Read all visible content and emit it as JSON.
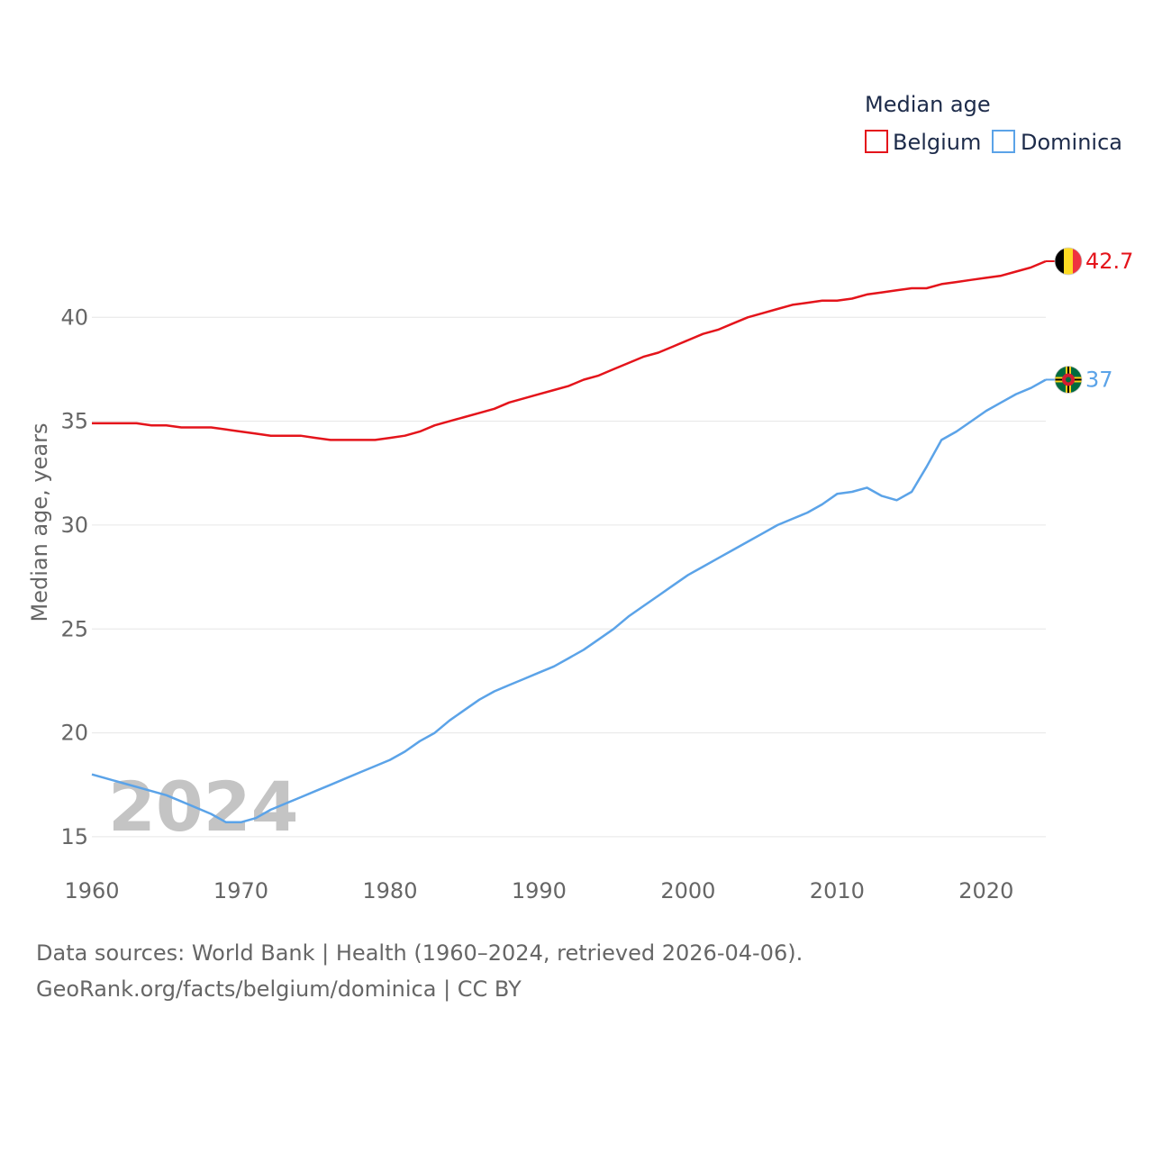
{
  "chart_data": {
    "type": "line",
    "legend_title": "Median age",
    "ylabel": "Median age, years",
    "xlabel": "",
    "current_year_label": "2024",
    "xlim": [
      1960,
      2024
    ],
    "ylim": [
      14,
      44
    ],
    "x_ticks": [
      1960,
      1970,
      1980,
      1990,
      2000,
      2010,
      2020
    ],
    "y_ticks": [
      15,
      20,
      25,
      30,
      35,
      40
    ],
    "grid": true,
    "x": [
      1960,
      1961,
      1962,
      1963,
      1964,
      1965,
      1966,
      1967,
      1968,
      1969,
      1970,
      1971,
      1972,
      1973,
      1974,
      1975,
      1976,
      1977,
      1978,
      1979,
      1980,
      1981,
      1982,
      1983,
      1984,
      1985,
      1986,
      1987,
      1988,
      1989,
      1990,
      1991,
      1992,
      1993,
      1994,
      1995,
      1996,
      1997,
      1998,
      1999,
      2000,
      2001,
      2002,
      2003,
      2004,
      2005,
      2006,
      2007,
      2008,
      2009,
      2010,
      2011,
      2012,
      2013,
      2014,
      2015,
      2016,
      2017,
      2018,
      2019,
      2020,
      2021,
      2022,
      2023,
      2024
    ],
    "series": [
      {
        "name": "Belgium",
        "color": "#e4141b",
        "end_label": "42.7",
        "flag": "belgium-flag",
        "values": [
          34.9,
          34.9,
          34.9,
          34.9,
          34.8,
          34.8,
          34.7,
          34.7,
          34.7,
          34.6,
          34.5,
          34.4,
          34.3,
          34.3,
          34.3,
          34.2,
          34.1,
          34.1,
          34.1,
          34.1,
          34.2,
          34.3,
          34.5,
          34.8,
          35.0,
          35.2,
          35.4,
          35.6,
          35.9,
          36.1,
          36.3,
          36.5,
          36.7,
          37.0,
          37.2,
          37.5,
          37.8,
          38.1,
          38.3,
          38.6,
          38.9,
          39.2,
          39.4,
          39.7,
          40.0,
          40.2,
          40.4,
          40.6,
          40.7,
          40.8,
          40.8,
          40.9,
          41.1,
          41.2,
          41.3,
          41.4,
          41.4,
          41.6,
          41.7,
          41.8,
          41.9,
          42.0,
          42.2,
          42.4,
          42.7
        ]
      },
      {
        "name": "Dominica",
        "color": "#5ba3e8",
        "end_label": "37",
        "flag": "dominica-flag",
        "values": [
          18.0,
          17.8,
          17.6,
          17.4,
          17.2,
          17.0,
          16.7,
          16.4,
          16.1,
          15.7,
          15.7,
          15.9,
          16.3,
          16.6,
          16.9,
          17.2,
          17.5,
          17.8,
          18.1,
          18.4,
          18.7,
          19.1,
          19.6,
          20.0,
          20.6,
          21.1,
          21.6,
          22.0,
          22.3,
          22.6,
          22.9,
          23.2,
          23.6,
          24.0,
          24.5,
          25.0,
          25.6,
          26.1,
          26.6,
          27.1,
          27.6,
          28.0,
          28.4,
          28.8,
          29.2,
          29.6,
          30.0,
          30.3,
          30.6,
          31.0,
          31.5,
          31.6,
          31.8,
          31.4,
          31.2,
          31.6,
          32.8,
          34.1,
          34.5,
          35.0,
          35.5,
          35.9,
          36.3,
          36.6,
          37.0
        ]
      }
    ]
  },
  "source": {
    "line1": "Data sources: World Bank | Health (1960–2024, retrieved 2026-04-06).",
    "line2": "GeoRank.org/facts/belgium/dominica | CC BY"
  }
}
